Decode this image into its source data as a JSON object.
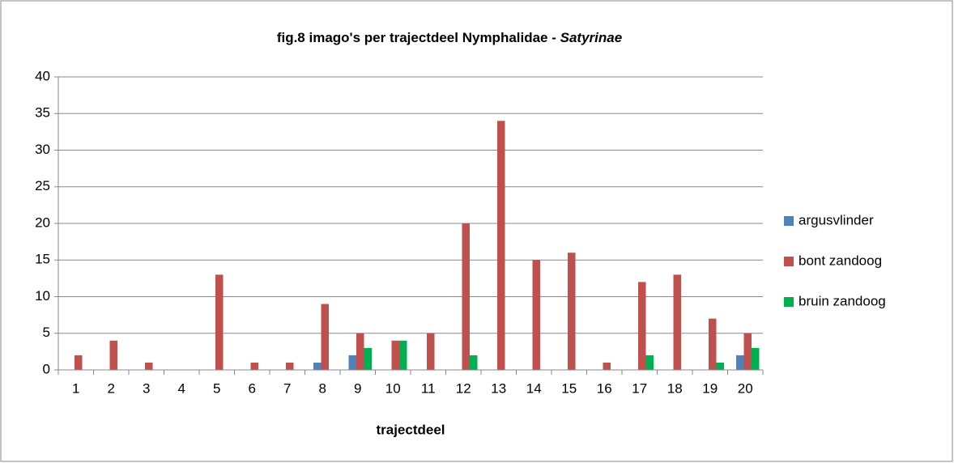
{
  "chart_data": {
    "type": "bar",
    "title": {
      "text": "fig.8 imago's per trajectdeel Nymphalidae -",
      "italic": "Satyrinae"
    },
    "x_label": "trajectdeel",
    "categories": [
      "1",
      "2",
      "3",
      "4",
      "5",
      "6",
      "7",
      "8",
      "9",
      "10",
      "11",
      "12",
      "13",
      "14",
      "15",
      "16",
      "17",
      "18",
      "19",
      "20"
    ],
    "series": [
      {
        "name": "argusvlinder",
        "color": "#4f81bd",
        "values": [
          0,
          0,
          0,
          0,
          0,
          0,
          0,
          1,
          2,
          0,
          0,
          0,
          0,
          0,
          0,
          0,
          0,
          0,
          0,
          2
        ]
      },
      {
        "name": "bont zandoog",
        "color": "#c0504d",
        "values": [
          2,
          4,
          1,
          0,
          13,
          1,
          1,
          9,
          5,
          4,
          5,
          20,
          34,
          15,
          16,
          1,
          12,
          13,
          7,
          5
        ]
      },
      {
        "name": "bruin zandoog",
        "color": "#00b050",
        "values": [
          0,
          0,
          0,
          0,
          0,
          0,
          0,
          0,
          3,
          4,
          0,
          2,
          0,
          0,
          0,
          0,
          2,
          0,
          1,
          3
        ]
      }
    ],
    "ylim": [
      0,
      40
    ],
    "yticks": [
      0,
      5,
      10,
      15,
      20,
      25,
      30,
      35,
      40
    ],
    "grid": true,
    "legend": "right"
  }
}
